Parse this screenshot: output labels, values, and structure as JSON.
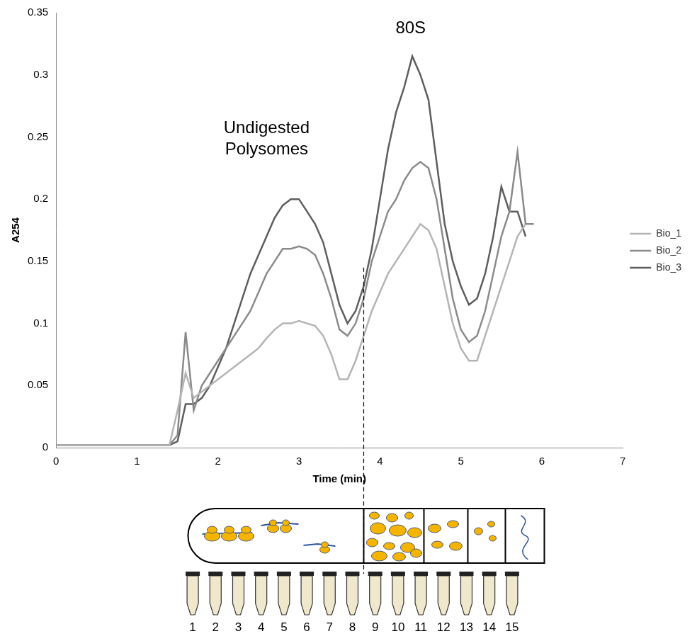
{
  "chart_data": {
    "type": "line",
    "x_label": "Time (min)",
    "y_label": "A254",
    "x": [
      0,
      1.4,
      1.5,
      1.6,
      1.7,
      1.8,
      1.9,
      2.0,
      2.1,
      2.2,
      2.3,
      2.4,
      2.5,
      2.6,
      2.7,
      2.8,
      2.9,
      3.0,
      3.1,
      3.2,
      3.3,
      3.4,
      3.5,
      3.6,
      3.7,
      3.8,
      3.9,
      4.0,
      4.1,
      4.2,
      4.3,
      4.4,
      4.5,
      4.6,
      4.7,
      4.8,
      4.9,
      5.0,
      5.1,
      5.2,
      5.3,
      5.4,
      5.5,
      5.6,
      5.7,
      5.8,
      5.9
    ],
    "series": [
      {
        "name": "Bio_1",
        "color": "#b4b4b4",
        "values": [
          0.002,
          0.002,
          0.03,
          0.06,
          0.04,
          0.045,
          0.05,
          0.055,
          0.06,
          0.065,
          0.07,
          0.075,
          0.08,
          0.088,
          0.095,
          0.1,
          0.1,
          0.102,
          0.1,
          0.098,
          0.09,
          0.075,
          0.055,
          0.055,
          0.07,
          0.09,
          0.11,
          0.125,
          0.14,
          0.15,
          0.16,
          0.17,
          0.18,
          0.175,
          0.16,
          0.13,
          0.1,
          0.08,
          0.07,
          0.07,
          0.09,
          0.11,
          0.13,
          0.15,
          0.17,
          0.18,
          null
        ]
      },
      {
        "name": "Bio_2",
        "color": "#8a8a8a",
        "values": [
          0.002,
          0.002,
          0.01,
          0.093,
          0.03,
          0.05,
          0.06,
          0.07,
          0.08,
          0.09,
          0.1,
          0.11,
          0.125,
          0.14,
          0.15,
          0.16,
          0.16,
          0.162,
          0.16,
          0.155,
          0.14,
          0.12,
          0.095,
          0.09,
          0.1,
          0.12,
          0.15,
          0.17,
          0.19,
          0.2,
          0.215,
          0.225,
          0.23,
          0.225,
          0.2,
          0.16,
          0.12,
          0.095,
          0.085,
          0.09,
          0.11,
          0.14,
          0.17,
          0.19,
          0.238,
          0.18,
          0.18
        ]
      },
      {
        "name": "Bio_3",
        "color": "#5e5e5e",
        "values": [
          0.002,
          0.002,
          0.005,
          0.035,
          0.035,
          0.04,
          0.05,
          0.065,
          0.08,
          0.1,
          0.12,
          0.14,
          0.155,
          0.17,
          0.185,
          0.195,
          0.2,
          0.2,
          0.19,
          0.18,
          0.165,
          0.14,
          0.115,
          0.1,
          0.11,
          0.13,
          0.16,
          0.2,
          0.24,
          0.27,
          0.29,
          0.315,
          0.3,
          0.28,
          0.23,
          0.18,
          0.15,
          0.13,
          0.115,
          0.12,
          0.14,
          0.17,
          0.21,
          0.19,
          0.19,
          0.17,
          null
        ]
      }
    ],
    "xlim": [
      0,
      7
    ],
    "xticks": [
      0,
      1,
      2,
      3,
      4,
      5,
      6,
      7
    ],
    "ylim": [
      0,
      0.35
    ],
    "yticks": [
      0,
      0.05,
      0.1,
      0.15,
      0.2,
      0.25,
      0.3,
      0.35
    ],
    "grid": false,
    "legend": "right",
    "line_style": "solid",
    "marker": "none",
    "annotations": [
      {
        "text": [
          "Undigested",
          "Polysomes"
        ],
        "x": 2.6,
        "y": 0.257
      },
      {
        "text": [
          "80S"
        ],
        "x": 4.38,
        "y": 0.337
      }
    ],
    "vertical_line": {
      "x": 3.8,
      "y": 0.145,
      "line_style": "dashed"
    },
    "tube_labels": [
      1,
      2,
      3,
      4,
      5,
      6,
      7,
      8,
      9,
      10,
      11,
      12,
      13,
      14,
      15
    ]
  }
}
